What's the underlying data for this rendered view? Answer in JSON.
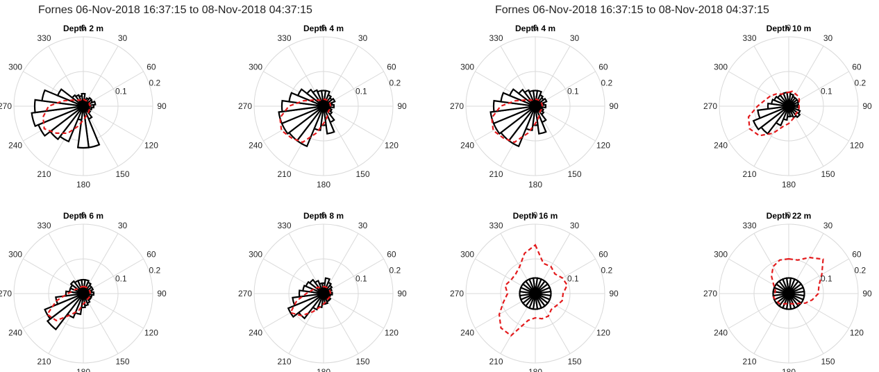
{
  "figure_titles": [
    "Fornes 06-Nov-2018 16:37:15 to 08-Nov-2018 04:37:15",
    "Fornes 06-Nov-2018 16:37:15 to 08-Nov-2018 04:37:15"
  ],
  "colors": {
    "bars": "#000000",
    "dashed_line": "#e31a1c",
    "grid": "#d9d9d9"
  },
  "chart_data": [
    {
      "type": "polar-rose",
      "title": "Depth 2 m",
      "angle_ticks": [
        "0",
        "30",
        "60",
        "90",
        "120",
        "150",
        "180",
        "210",
        "240",
        "270",
        "300",
        "330"
      ],
      "r_ticks": [
        "0.1",
        "0.2"
      ],
      "rlim": [
        0,
        0.2
      ],
      "sector_directions": [
        0,
        15,
        30,
        45,
        60,
        75,
        90,
        105,
        120,
        135,
        150,
        165,
        180,
        195,
        210,
        225,
        240,
        255,
        270,
        285,
        300,
        315,
        330,
        345
      ],
      "bars": [
        0.036,
        0.02,
        0.025,
        0.03,
        0.028,
        0.035,
        0.03,
        0.025,
        0.02,
        0.025,
        0.04,
        0.12,
        0.12,
        0.04,
        0.11,
        0.12,
        0.14,
        0.15,
        0.14,
        0.12,
        0.08,
        0.04,
        0.035,
        0.03
      ],
      "dashed": [
        0.02,
        0.018,
        0.018,
        0.02,
        0.02,
        0.018,
        0.02,
        0.02,
        0.02,
        0.022,
        0.025,
        0.03,
        0.04,
        0.06,
        0.09,
        0.11,
        0.13,
        0.12,
        0.1,
        0.06,
        0.035,
        0.025,
        0.02,
        0.02
      ]
    },
    {
      "type": "polar-rose",
      "title": "Depth 4 m",
      "angle_ticks": [
        "0",
        "30",
        "60",
        "90",
        "120",
        "150",
        "180",
        "210",
        "240",
        "270",
        "300",
        "330"
      ],
      "r_ticks": [
        "0.1",
        "0.2"
      ],
      "rlim": [
        0,
        0.2
      ],
      "sector_directions": [
        0,
        15,
        30,
        45,
        60,
        75,
        90,
        105,
        120,
        135,
        150,
        165,
        180,
        195,
        210,
        225,
        240,
        255,
        270,
        285,
        300,
        315,
        330,
        345
      ],
      "bars": [
        0.045,
        0.045,
        0.035,
        0.03,
        0.035,
        0.025,
        0.03,
        0.02,
        0.025,
        0.03,
        0.05,
        0.08,
        0.055,
        0.07,
        0.125,
        0.125,
        0.13,
        0.13,
        0.12,
        0.1,
        0.08,
        0.06,
        0.05,
        0.045
      ],
      "dashed": [
        0.02,
        0.02,
        0.02,
        0.02,
        0.02,
        0.02,
        0.02,
        0.02,
        0.02,
        0.02,
        0.025,
        0.035,
        0.05,
        0.08,
        0.12,
        0.13,
        0.14,
        0.13,
        0.1,
        0.06,
        0.035,
        0.025,
        0.02,
        0.02
      ]
    },
    {
      "type": "polar-rose",
      "title": "Depth 6 m",
      "angle_ticks": [
        "0",
        "30",
        "60",
        "90",
        "120",
        "150",
        "180",
        "210",
        "240",
        "270",
        "300",
        "330"
      ],
      "r_ticks": [
        "0.1",
        "0.2"
      ],
      "rlim": [
        0,
        0.2
      ],
      "sector_directions": [
        0,
        15,
        30,
        45,
        60,
        75,
        90,
        105,
        120,
        135,
        150,
        165,
        180,
        195,
        210,
        225,
        240,
        255,
        270,
        285,
        300,
        315,
        330,
        345
      ],
      "bars": [
        0.04,
        0.04,
        0.035,
        0.03,
        0.03,
        0.025,
        0.03,
        0.025,
        0.025,
        0.025,
        0.03,
        0.035,
        0.04,
        0.06,
        0.075,
        0.13,
        0.12,
        0.08,
        0.05,
        0.04,
        0.04,
        0.045,
        0.04,
        0.04
      ],
      "dashed": [
        0.02,
        0.02,
        0.02,
        0.02,
        0.02,
        0.02,
        0.02,
        0.02,
        0.02,
        0.02,
        0.02,
        0.025,
        0.03,
        0.05,
        0.07,
        0.11,
        0.12,
        0.08,
        0.045,
        0.03,
        0.025,
        0.02,
        0.02,
        0.02
      ]
    },
    {
      "type": "polar-rose",
      "title": "Depth 8 m",
      "angle_ticks": [
        "0",
        "30",
        "60",
        "90",
        "120",
        "150",
        "180",
        "210",
        "240",
        "270",
        "300",
        "330"
      ],
      "r_ticks": [
        "0.1",
        "0.2"
      ],
      "rlim": [
        0,
        0.2
      ],
      "sector_directions": [
        0,
        15,
        30,
        45,
        60,
        75,
        90,
        105,
        120,
        135,
        150,
        165,
        180,
        195,
        210,
        225,
        240,
        255,
        270,
        285,
        300,
        315,
        330,
        345
      ],
      "bars": [
        0.03,
        0.045,
        0.035,
        0.03,
        0.025,
        0.02,
        0.025,
        0.02,
        0.02,
        0.025,
        0.025,
        0.03,
        0.03,
        0.04,
        0.05,
        0.09,
        0.11,
        0.09,
        0.07,
        0.06,
        0.055,
        0.05,
        0.04,
        0.03
      ],
      "dashed": [
        0.02,
        0.02,
        0.02,
        0.02,
        0.02,
        0.02,
        0.02,
        0.02,
        0.02,
        0.02,
        0.02,
        0.025,
        0.03,
        0.04,
        0.06,
        0.09,
        0.11,
        0.08,
        0.05,
        0.035,
        0.03,
        0.025,
        0.02,
        0.02
      ]
    },
    {
      "type": "polar-rose",
      "title": "Depth 4 m",
      "angle_ticks": [
        "0",
        "30",
        "60",
        "90",
        "120",
        "150",
        "180",
        "210",
        "240",
        "270",
        "300",
        "330"
      ],
      "r_ticks": [
        "0.1",
        "0.2"
      ],
      "rlim": [
        0,
        0.2
      ],
      "sector_directions": [
        0,
        15,
        30,
        45,
        60,
        75,
        90,
        105,
        120,
        135,
        150,
        165,
        180,
        195,
        210,
        225,
        240,
        255,
        270,
        285,
        300,
        315,
        330,
        345
      ],
      "bars": [
        0.045,
        0.045,
        0.035,
        0.03,
        0.035,
        0.025,
        0.03,
        0.02,
        0.025,
        0.03,
        0.05,
        0.08,
        0.055,
        0.07,
        0.125,
        0.125,
        0.13,
        0.13,
        0.12,
        0.1,
        0.08,
        0.06,
        0.05,
        0.045
      ],
      "dashed": [
        0.02,
        0.02,
        0.02,
        0.02,
        0.02,
        0.02,
        0.02,
        0.02,
        0.02,
        0.02,
        0.025,
        0.035,
        0.05,
        0.08,
        0.12,
        0.13,
        0.14,
        0.13,
        0.1,
        0.06,
        0.035,
        0.025,
        0.02,
        0.02
      ]
    },
    {
      "type": "polar-rose",
      "title": "Depth 10 m",
      "angle_ticks": [
        "0",
        "30",
        "60",
        "90",
        "120",
        "150",
        "180",
        "210",
        "240",
        "270",
        "300",
        "330"
      ],
      "r_ticks": [
        "0.1",
        "0.2"
      ],
      "rlim": [
        0,
        0.2
      ],
      "sector_directions": [
        0,
        15,
        30,
        45,
        60,
        75,
        90,
        105,
        120,
        135,
        150,
        165,
        180,
        195,
        210,
        225,
        240,
        255,
        270,
        285,
        300,
        315,
        330,
        345
      ],
      "bars": [
        0.04,
        0.035,
        0.03,
        0.03,
        0.03,
        0.028,
        0.025,
        0.03,
        0.035,
        0.04,
        0.035,
        0.03,
        0.03,
        0.04,
        0.06,
        0.1,
        0.11,
        0.09,
        0.06,
        0.05,
        0.045,
        0.04,
        0.04,
        0.04
      ],
      "dashed": [
        0.04,
        0.045,
        0.04,
        0.04,
        0.035,
        0.03,
        0.03,
        0.03,
        0.03,
        0.03,
        0.035,
        0.04,
        0.05,
        0.06,
        0.09,
        0.12,
        0.13,
        0.12,
        0.09,
        0.07,
        0.06,
        0.05,
        0.04,
        0.04
      ]
    },
    {
      "type": "polar-rose",
      "title": "Depth 16 m",
      "angle_ticks": [
        "0",
        "30",
        "60",
        "90",
        "120",
        "150",
        "180",
        "210",
        "240",
        "270",
        "300",
        "330"
      ],
      "r_ticks": [
        "0.1",
        "0.2"
      ],
      "rlim": [
        0,
        0.2
      ],
      "sector_directions": [
        0,
        15,
        30,
        45,
        60,
        75,
        90,
        105,
        120,
        135,
        150,
        165,
        180,
        195,
        210,
        225,
        240,
        255,
        270,
        285,
        300,
        315,
        330,
        345
      ],
      "bars": [
        0.045,
        0.045,
        0.045,
        0.045,
        0.045,
        0.045,
        0.045,
        0.045,
        0.045,
        0.045,
        0.045,
        0.045,
        0.045,
        0.045,
        0.045,
        0.045,
        0.045,
        0.045,
        0.045,
        0.045,
        0.045,
        0.045,
        0.045,
        0.045
      ],
      "dashed": [
        0.14,
        0.09,
        0.09,
        0.08,
        0.09,
        0.095,
        0.08,
        0.08,
        0.07,
        0.065,
        0.075,
        0.075,
        0.07,
        0.08,
        0.14,
        0.14,
        0.12,
        0.095,
        0.08,
        0.09,
        0.08,
        0.08,
        0.09,
        0.12
      ]
    },
    {
      "type": "polar-rose",
      "title": "Depth 22 m",
      "angle_ticks": [
        "0",
        "30",
        "60",
        "90",
        "120",
        "150",
        "180",
        "210",
        "240",
        "270",
        "300",
        "330"
      ],
      "r_ticks": [
        "0.1",
        "0.2"
      ],
      "rlim": [
        0,
        0.2
      ],
      "sector_directions": [
        0,
        15,
        30,
        45,
        60,
        75,
        90,
        105,
        120,
        135,
        150,
        165,
        180,
        195,
        210,
        225,
        240,
        255,
        270,
        285,
        300,
        315,
        330,
        345
      ],
      "bars": [
        0.045,
        0.045,
        0.045,
        0.045,
        0.045,
        0.045,
        0.045,
        0.045,
        0.045,
        0.045,
        0.045,
        0.045,
        0.045,
        0.045,
        0.045,
        0.045,
        0.045,
        0.045,
        0.045,
        0.045,
        0.045,
        0.045,
        0.045,
        0.045
      ],
      "dashed": [
        0.1,
        0.1,
        0.12,
        0.14,
        0.11,
        0.09,
        0.085,
        0.07,
        0.055,
        0.04,
        0.035,
        0.03,
        0.03,
        0.03,
        0.035,
        0.04,
        0.04,
        0.045,
        0.04,
        0.04,
        0.05,
        0.07,
        0.09,
        0.1
      ]
    }
  ]
}
